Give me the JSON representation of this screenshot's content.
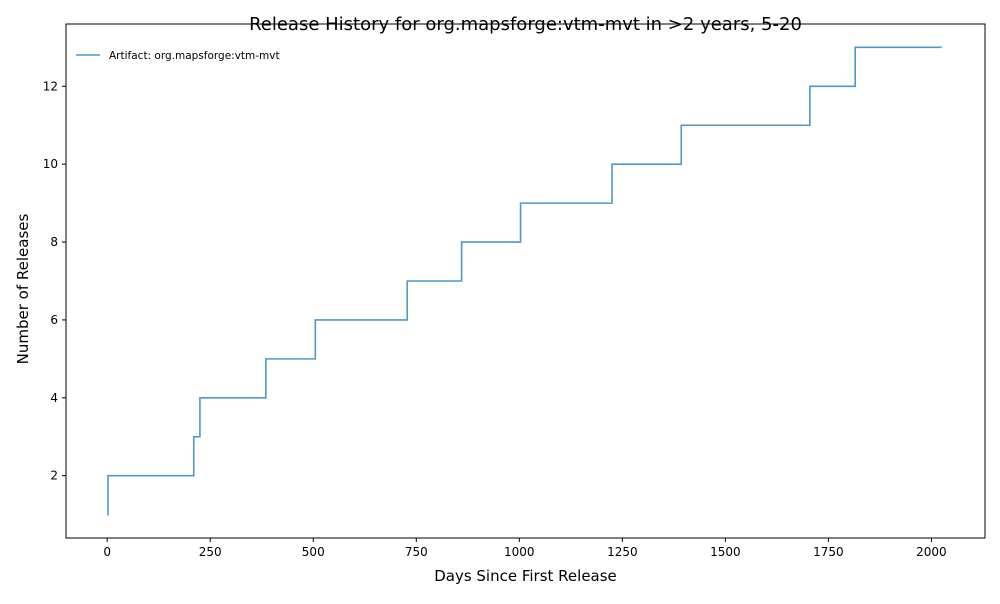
{
  "chart_data": {
    "type": "line",
    "title": "Release History for org.mapsforge:vtm-mvt in >2 years, 5-20",
    "xlabel": "Days Since First Release",
    "ylabel": "Number of Releases",
    "xlim": [
      -100,
      2130
    ],
    "ylim": [
      0.4,
      13.6
    ],
    "x_ticks": [
      0,
      250,
      500,
      750,
      1000,
      1250,
      1500,
      1750,
      2000
    ],
    "y_ticks": [
      2,
      4,
      6,
      8,
      10,
      12
    ],
    "grid": false,
    "legend_position": "top-left",
    "series": [
      {
        "name": "Artifact: org.mapsforge:vtm-mvt",
        "color": "#4f97c9",
        "step": "post",
        "x": [
          0,
          2,
          210,
          225,
          385,
          505,
          728,
          860,
          1003,
          1225,
          1393,
          1705,
          1815,
          2025
        ],
        "y": [
          1,
          2,
          3,
          4,
          5,
          6,
          7,
          8,
          9,
          10,
          11,
          12,
          13,
          13
        ]
      }
    ]
  }
}
